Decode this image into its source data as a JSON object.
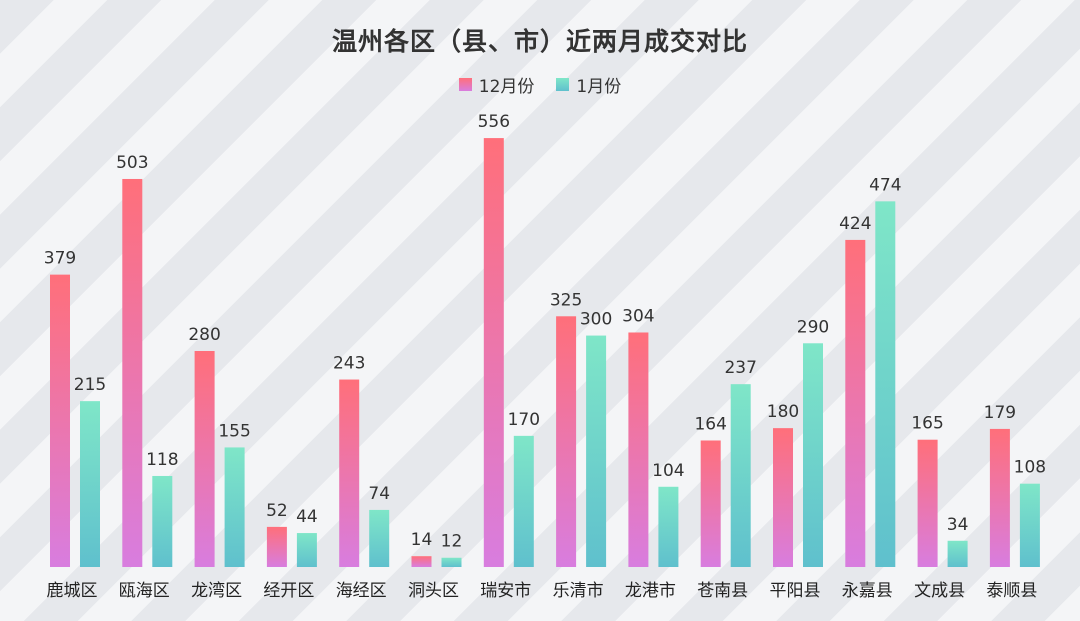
{
  "chart_data": {
    "type": "bar",
    "title": "温州各区（县、市）近两月成交对比",
    "categories": [
      "鹿城区",
      "瓯海区",
      "龙湾区",
      "经开区",
      "海经区",
      "洞头区",
      "瑞安市",
      "乐清市",
      "龙港市",
      "苍南县",
      "平阳县",
      "永嘉县",
      "文成县",
      "泰顺县"
    ],
    "series": [
      {
        "name": "12月份",
        "values": [
          379,
          503,
          280,
          52,
          243,
          14,
          556,
          325,
          304,
          164,
          180,
          424,
          165,
          179
        ],
        "color_top": "#ff6f7a",
        "color_bottom": "#d87ddf"
      },
      {
        "name": "1月份",
        "values": [
          215,
          118,
          155,
          44,
          74,
          12,
          170,
          300,
          104,
          237,
          290,
          474,
          34,
          108
        ],
        "color_top": "#7fe6c8",
        "color_bottom": "#5fc0cd"
      }
    ],
    "ylim": [
      0,
      560
    ],
    "xlabel": "",
    "ylabel": "",
    "grid": false,
    "legend_position": "top-center",
    "data_labels": true
  }
}
